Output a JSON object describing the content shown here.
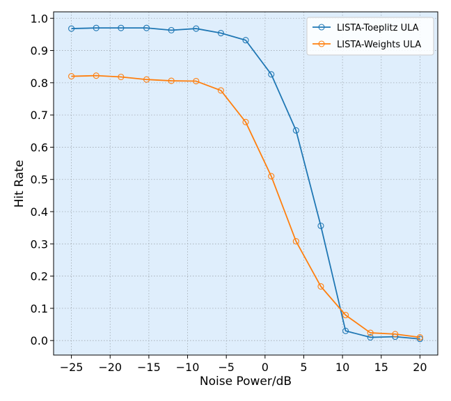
{
  "chart_data": {
    "type": "line",
    "xlabel": "Noise Power/dB",
    "ylabel": "Hit Rate",
    "xlim": [
      -27.3,
      22.3
    ],
    "ylim": [
      -0.045,
      1.02
    ],
    "xticks": [
      -25,
      -20,
      -15,
      -10,
      -5,
      0,
      5,
      10,
      15,
      20
    ],
    "xtick_labels": [
      "−25",
      "−20",
      "−15",
      "−10",
      "−5",
      "0",
      "5",
      "10",
      "15",
      "20"
    ],
    "yticks": [
      0.0,
      0.1,
      0.2,
      0.3,
      0.4,
      0.5,
      0.6,
      0.7,
      0.8,
      0.9,
      1.0
    ],
    "ytick_labels": [
      "0.0",
      "0.1",
      "0.2",
      "0.3",
      "0.4",
      "0.5",
      "0.6",
      "0.7",
      "0.8",
      "0.9",
      "1.0"
    ],
    "grid": true,
    "background": "#dfeefc",
    "legend_position": "top-right",
    "x": [
      -25,
      -21.8,
      -18.6,
      -15.3,
      -12.1,
      -8.9,
      -5.7,
      -2.5,
      0.8,
      4.0,
      7.2,
      10.4,
      13.6,
      16.8,
      20
    ],
    "series": [
      {
        "name": "LISTA-Toeplitz ULA",
        "color": "#1f77b4",
        "marker": "open-circle",
        "values": [
          0.968,
          0.97,
          0.97,
          0.97,
          0.963,
          0.968,
          0.954,
          0.932,
          0.826,
          0.652,
          0.356,
          0.03,
          0.01,
          0.012,
          0.005
        ]
      },
      {
        "name": "LISTA-Weights ULA",
        "color": "#ff7f0e",
        "marker": "open-circle",
        "values": [
          0.82,
          0.822,
          0.818,
          0.81,
          0.806,
          0.805,
          0.776,
          0.678,
          0.51,
          0.308,
          0.168,
          0.079,
          0.024,
          0.02,
          0.01
        ]
      }
    ]
  }
}
